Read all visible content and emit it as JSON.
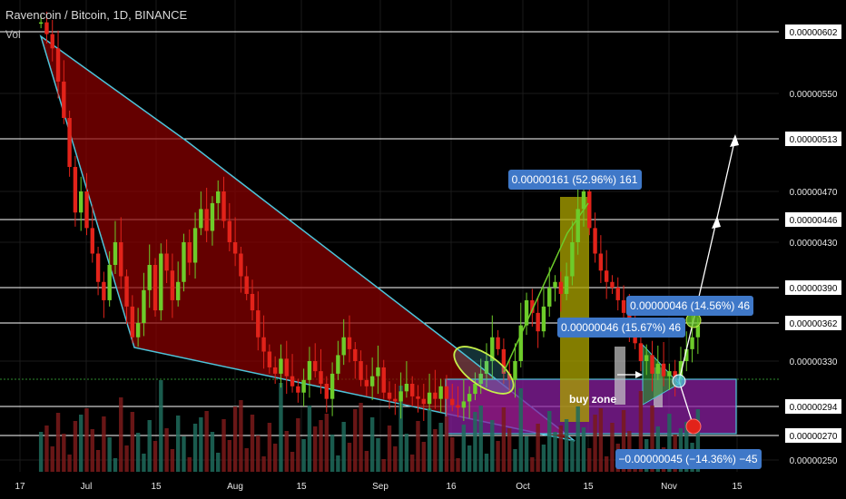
{
  "header": {
    "symbol": "Ravencoin / Bitcoin, 1D, BINANCE",
    "volume_label": "Vol"
  },
  "chart_data": {
    "type": "candlestick",
    "xlabel": "",
    "ylabel": "",
    "y_tick_labels": [
      "0.00000602",
      "0.00000550",
      "0.00000513",
      "0.00000470",
      "0.00000446",
      "0.00000430",
      "0.00000390",
      "0.00000362",
      "0.00000330",
      "0.00000294",
      "0.00000270",
      "0.00000250"
    ],
    "x_tick_labels": [
      "17",
      "Jul",
      "15",
      "Aug",
      "15",
      "Sep",
      "16",
      "Oct",
      "15",
      "Nov",
      "15"
    ],
    "horizontal_levels": [
      6.02e-06,
      5.13e-06,
      4.46e-06,
      3.9e-06,
      3.62e-06,
      2.94e-06,
      2.7e-06
    ],
    "ylim": [
      2.45e-06,
      6.22e-06
    ],
    "annotations": {
      "measure_up_1": "0.00000161 (52.96%) 161",
      "measure_up_2": "0.00000046 (15.67%) 46",
      "measure_up_3": "0.00000046 (14.56%) 46",
      "measure_down": "−0.00000045 (−14.36%) −45",
      "zone_label": "buy zone"
    }
  },
  "colors": {
    "background": "#000000",
    "up_candle": "#6dcc2a",
    "down_candle": "#e2231a",
    "wedge_fill": "#8b0000",
    "wedge_line": "#4ec3d9",
    "buy_zone": "#8a1fa0",
    "label_box": "#3f78c8",
    "yellow_bar": "#a8a000",
    "level_line": "#ffffff"
  }
}
